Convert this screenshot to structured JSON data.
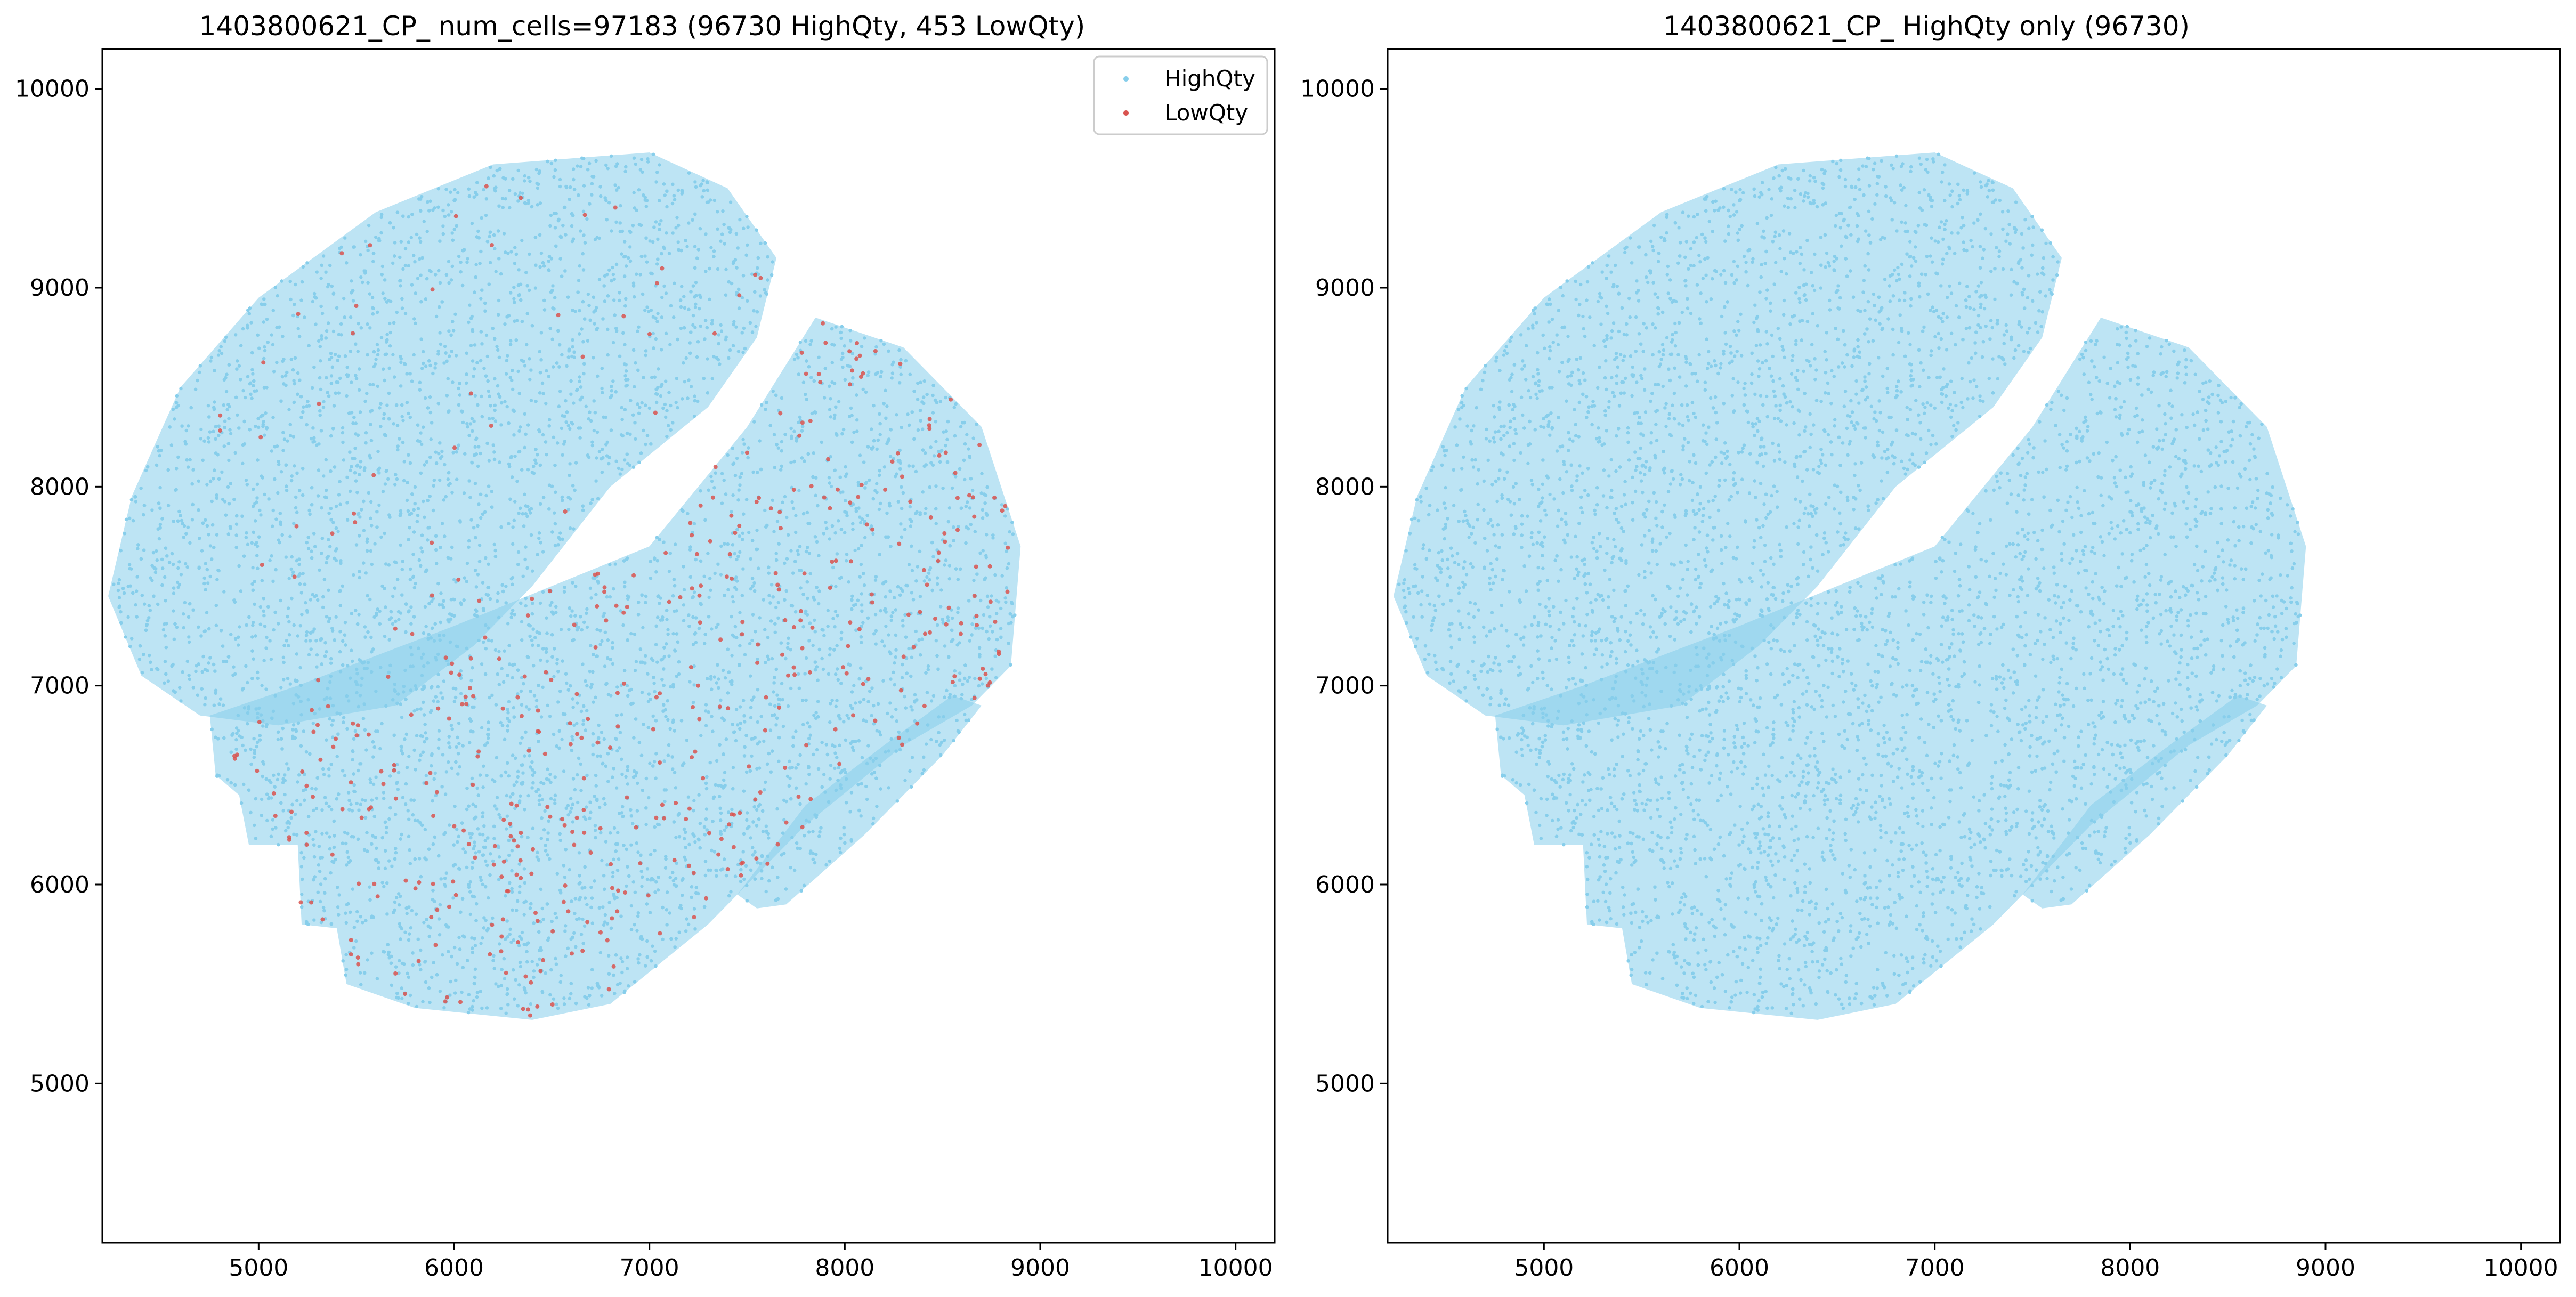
{
  "colors": {
    "high": "#87ceeb",
    "low": "#d9534f",
    "axis": "#000000",
    "background": "#ffffff"
  },
  "chart_data": [
    {
      "type": "scatter",
      "title": "1403800621_CP_ num_cells=97183 (96730 HighQty, 453 LowQty)",
      "xlabel": "",
      "ylabel": "",
      "xlim": [
        4200,
        10200
      ],
      "ylim": [
        4200,
        10200
      ],
      "xticks": [
        5000,
        6000,
        7000,
        8000,
        9000,
        10000
      ],
      "yticks": [
        5000,
        6000,
        7000,
        8000,
        9000,
        10000
      ],
      "grid": false,
      "legend": {
        "placement": "top-right",
        "entries": [
          {
            "name": "HighQty",
            "color": "#87ceeb"
          },
          {
            "name": "LowQty",
            "color": "#d9534f"
          }
        ]
      },
      "series": [
        {
          "name": "HighQty",
          "count": 96730,
          "color": "#87ceeb"
        },
        {
          "name": "LowQty",
          "count": 453,
          "color": "#d9534f"
        }
      ]
    },
    {
      "type": "scatter",
      "title": "1403800621_CP_ HighQty only (96730)",
      "xlabel": "",
      "ylabel": "",
      "xlim": [
        4200,
        10200
      ],
      "ylim": [
        4200,
        10200
      ],
      "xticks": [
        5000,
        6000,
        7000,
        8000,
        9000,
        10000
      ],
      "yticks": [
        5000,
        6000,
        7000,
        8000,
        9000,
        10000
      ],
      "grid": false,
      "series": [
        {
          "name": "HighQty",
          "count": 96730,
          "color": "#87ceeb"
        }
      ]
    }
  ]
}
